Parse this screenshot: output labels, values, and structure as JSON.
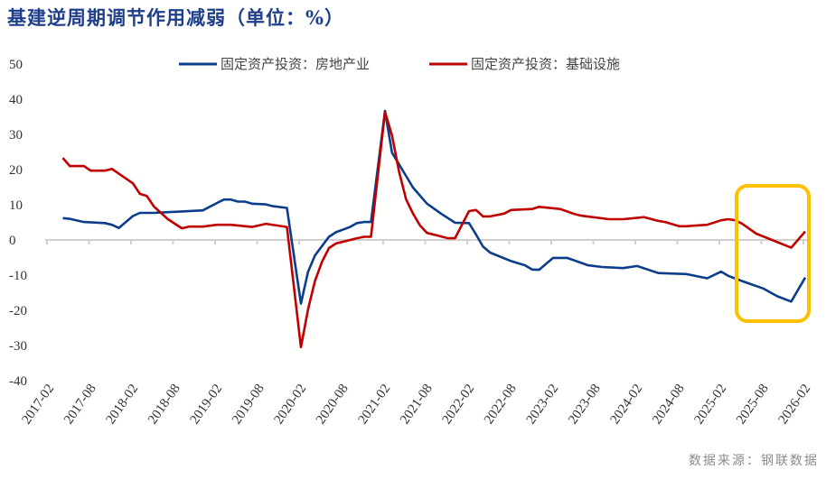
{
  "title": "基建逆周期调节作用减弱（单位：%）",
  "source": "数据来源：钢联数据",
  "chart_data": {
    "type": "line",
    "title": "基建逆周期调节作用减弱（单位：%）",
    "xlabel": "",
    "ylabel": "",
    "ylim": [
      -40,
      50
    ],
    "yticks": [
      50,
      40,
      30,
      20,
      10,
      0,
      -10,
      -20,
      -30,
      -40
    ],
    "xticks": [
      "2017-02",
      "2017-08",
      "2018-02",
      "2018-08",
      "2019-02",
      "2019-08",
      "2020-02",
      "2020-08",
      "2021-02",
      "2021-08",
      "2022-02",
      "2022-08",
      "2023-02",
      "2023-08",
      "2024-02",
      "2024-08",
      "2025-02",
      "2025-08",
      "2026-02"
    ],
    "grid": false,
    "legend_position": "top",
    "highlight": {
      "from": "2025-04",
      "to": "2026-02",
      "color": "#FFC000"
    },
    "series": [
      {
        "name": "固定资产投资：房地产业",
        "color": "#0B3D8C",
        "points": [
          [
            "2017-04",
            6.2
          ],
          [
            "2017-05",
            6.0
          ],
          [
            "2017-07",
            5.1
          ],
          [
            "2017-10",
            4.8
          ],
          [
            "2017-11",
            4.3
          ],
          [
            "2017-12",
            3.4
          ],
          [
            "2018-02",
            6.8
          ],
          [
            "2018-03",
            7.7
          ],
          [
            "2018-05",
            7.7
          ],
          [
            "2018-07",
            7.9
          ],
          [
            "2018-09",
            8.1
          ],
          [
            "2018-12",
            8.4
          ],
          [
            "2019-02",
            10.5
          ],
          [
            "2019-03",
            11.5
          ],
          [
            "2019-04",
            11.5
          ],
          [
            "2019-05",
            10.9
          ],
          [
            "2019-06",
            10.9
          ],
          [
            "2019-07",
            10.3
          ],
          [
            "2019-09",
            10.1
          ],
          [
            "2019-10",
            9.6
          ],
          [
            "2019-12",
            9.1
          ],
          [
            "2020-02",
            -18.1
          ],
          [
            "2020-03",
            -9.1
          ],
          [
            "2020-04",
            -4.4
          ],
          [
            "2020-06",
            0.9
          ],
          [
            "2020-07",
            2.2
          ],
          [
            "2020-09",
            3.7
          ],
          [
            "2020-10",
            4.8
          ],
          [
            "2020-11",
            5.1
          ],
          [
            "2020-12",
            5.1
          ],
          [
            "2021-02",
            36.7
          ],
          [
            "2021-03",
            24.8
          ],
          [
            "2021-05",
            18.2
          ],
          [
            "2021-06",
            14.9
          ],
          [
            "2021-08",
            10.3
          ],
          [
            "2021-10",
            7.5
          ],
          [
            "2021-12",
            4.9
          ],
          [
            "2022-02",
            4.8
          ],
          [
            "2022-03",
            1.5
          ],
          [
            "2022-04",
            -1.9
          ],
          [
            "2022-05",
            -3.6
          ],
          [
            "2022-08",
            -6.0
          ],
          [
            "2022-10",
            -7.2
          ],
          [
            "2022-11",
            -8.4
          ],
          [
            "2022-12",
            -8.5
          ],
          [
            "2023-02",
            -5.1
          ],
          [
            "2023-04",
            -5.1
          ],
          [
            "2023-07",
            -7.2
          ],
          [
            "2023-09",
            -7.7
          ],
          [
            "2023-12",
            -8.0
          ],
          [
            "2024-02",
            -7.4
          ],
          [
            "2024-05",
            -9.4
          ],
          [
            "2024-09",
            -9.7
          ],
          [
            "2024-12",
            -10.9
          ],
          [
            "2025-02",
            -9.0
          ],
          [
            "2025-03",
            -10.2
          ],
          [
            "2025-05",
            -11.7
          ],
          [
            "2025-08",
            -13.8
          ],
          [
            "2025-10",
            -16.0
          ],
          [
            "2025-12",
            -17.5
          ],
          [
            "2026-02",
            -10.7
          ]
        ]
      },
      {
        "name": "固定资产投资：基础设施",
        "color": "#C00000",
        "points": [
          [
            "2017-04",
            23.3
          ],
          [
            "2017-05",
            21.0
          ],
          [
            "2017-07",
            21.0
          ],
          [
            "2017-08",
            19.7
          ],
          [
            "2017-10",
            19.7
          ],
          [
            "2017-11",
            20.2
          ],
          [
            "2018-02",
            16.1
          ],
          [
            "2018-03",
            13.1
          ],
          [
            "2018-04",
            12.5
          ],
          [
            "2018-05",
            9.5
          ],
          [
            "2018-07",
            5.9
          ],
          [
            "2018-09",
            3.3
          ],
          [
            "2018-10",
            3.8
          ],
          [
            "2018-12",
            3.8
          ],
          [
            "2019-02",
            4.3
          ],
          [
            "2019-04",
            4.3
          ],
          [
            "2019-07",
            3.7
          ],
          [
            "2019-09",
            4.6
          ],
          [
            "2019-12",
            3.7
          ],
          [
            "2020-02",
            -30.5
          ],
          [
            "2020-03",
            -19.8
          ],
          [
            "2020-04",
            -11.7
          ],
          [
            "2020-05",
            -6.2
          ],
          [
            "2020-06",
            -2.3
          ],
          [
            "2020-07",
            -1.0
          ],
          [
            "2020-10",
            0.5
          ],
          [
            "2020-11",
            0.9
          ],
          [
            "2020-12",
            0.9
          ],
          [
            "2021-02",
            36.4
          ],
          [
            "2021-03",
            29.7
          ],
          [
            "2021-04",
            19.5
          ],
          [
            "2021-05",
            11.6
          ],
          [
            "2021-06",
            7.5
          ],
          [
            "2021-07",
            4.1
          ],
          [
            "2021-08",
            2.0
          ],
          [
            "2021-09",
            1.5
          ],
          [
            "2021-11",
            0.5
          ],
          [
            "2021-12",
            0.5
          ],
          [
            "2022-02",
            8.2
          ],
          [
            "2022-03",
            8.5
          ],
          [
            "2022-04",
            6.7
          ],
          [
            "2022-05",
            6.7
          ],
          [
            "2022-07",
            7.5
          ],
          [
            "2022-08",
            8.5
          ],
          [
            "2022-11",
            8.8
          ],
          [
            "2022-12",
            9.4
          ],
          [
            "2023-03",
            8.8
          ],
          [
            "2023-05",
            7.4
          ],
          [
            "2023-06",
            6.9
          ],
          [
            "2023-10",
            5.9
          ],
          [
            "2023-12",
            5.9
          ],
          [
            "2024-03",
            6.5
          ],
          [
            "2024-05",
            5.4
          ],
          [
            "2024-06",
            5.1
          ],
          [
            "2024-08",
            3.9
          ],
          [
            "2024-09",
            3.9
          ],
          [
            "2024-12",
            4.3
          ],
          [
            "2025-02",
            5.6
          ],
          [
            "2025-03",
            5.9
          ],
          [
            "2025-04",
            5.6
          ],
          [
            "2025-05",
            4.6
          ],
          [
            "2025-07",
            1.8
          ],
          [
            "2025-12",
            -2.2
          ],
          [
            "2026-02",
            2.4
          ]
        ]
      }
    ]
  }
}
